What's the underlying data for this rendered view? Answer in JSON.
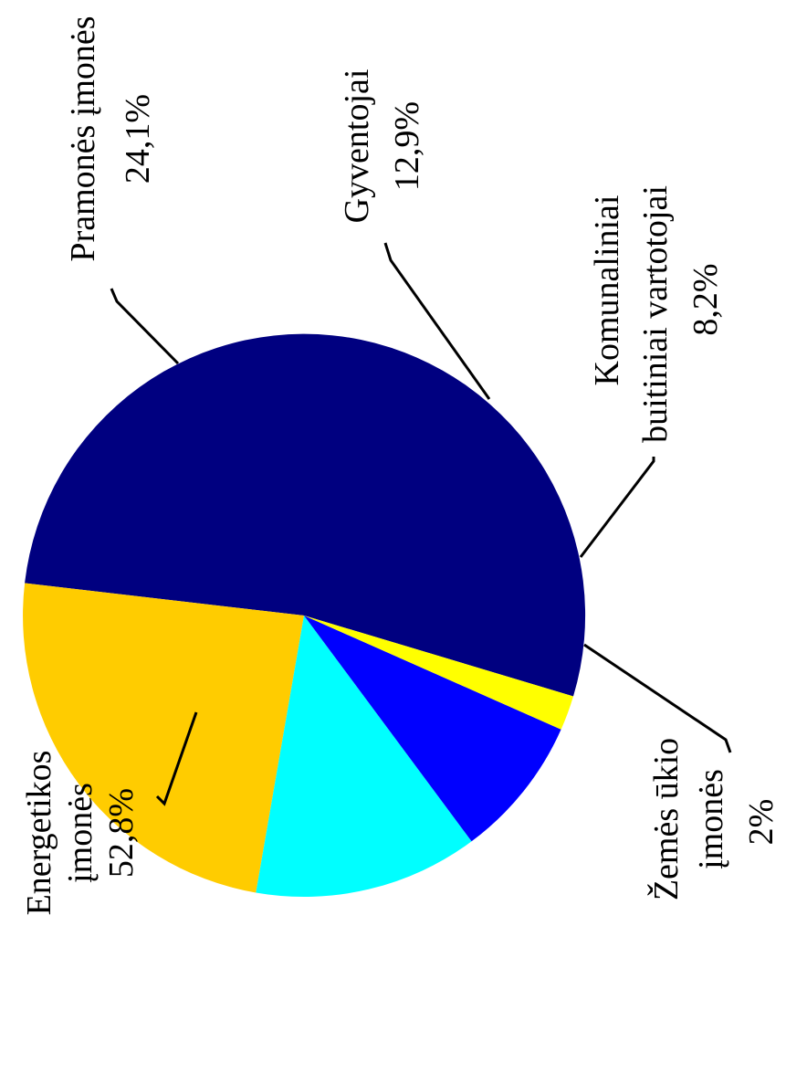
{
  "chart_data": {
    "type": "pie",
    "title": "",
    "slices": [
      {
        "label_lines": [
          "Energetikos",
          "įmonės",
          "52,8%"
        ],
        "value": 52.8,
        "color": "#000080"
      },
      {
        "label_lines": [
          "Pramonės įmonės",
          "24,1%"
        ],
        "value": 24.1,
        "color": "#ffcc00"
      },
      {
        "label_lines": [
          "Gyventojai",
          "12,9%"
        ],
        "value": 12.9,
        "color": "#00ffff"
      },
      {
        "label_lines": [
          "Komunaliniai",
          "buitiniai vartotojai",
          "8,2%"
        ],
        "value": 8.2,
        "color": "#0000ff"
      },
      {
        "label_lines": [
          "Žemės ūkio",
          "įmonės",
          "2%"
        ],
        "value": 2.0,
        "color": "#ffff00"
      }
    ]
  }
}
